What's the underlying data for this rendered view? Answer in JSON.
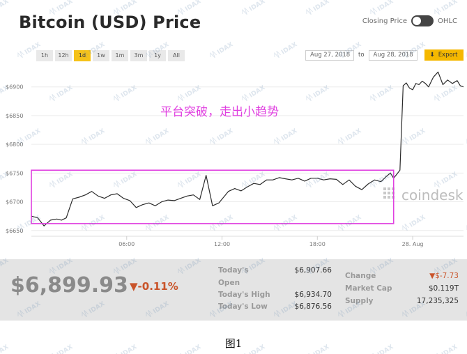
{
  "header": {
    "title": "Bitcoin (USD) Price",
    "closing_label": "Closing Price",
    "ohlc_label": "OHLC"
  },
  "ranges": [
    {
      "label": "1h",
      "active": false
    },
    {
      "label": "12h",
      "active": false
    },
    {
      "label": "1d",
      "active": true
    },
    {
      "label": "1w",
      "active": false
    },
    {
      "label": "1m",
      "active": false
    },
    {
      "label": "3m",
      "active": false
    },
    {
      "label": "1y",
      "active": false
    },
    {
      "label": "All",
      "active": false
    }
  ],
  "dates": {
    "from": "Aug 27, 2018",
    "to_label": "to",
    "to": "Aug 28, 2018",
    "export_label": "Export"
  },
  "chart_data": {
    "type": "line",
    "annotation": "平台突破，走出小趋势",
    "watermark": "coindesk",
    "y_ticks": [
      "$6900",
      "$6850",
      "$6800",
      "$6750",
      "$6700",
      "$6650"
    ],
    "x_ticks": [
      "06:00",
      "12:00",
      "18:00",
      "28. Aug"
    ],
    "ylim": [
      6640,
      6930
    ],
    "grid": true,
    "series": [
      {
        "x": [
          0,
          0.4,
          0.8,
          1.2,
          1.6,
          1.9,
          2.2,
          2.6,
          3,
          3.4,
          3.8,
          4.2,
          4.6,
          5,
          5.4,
          5.8,
          6.2,
          6.6,
          7,
          7.4,
          7.8,
          8.2,
          8.6,
          9,
          9.4,
          9.8,
          10.2,
          10.6,
          11,
          11.4,
          11.8,
          12.1,
          12.4,
          12.8,
          13.2,
          13.6,
          14,
          14.4,
          14.8,
          15.2,
          15.6,
          16,
          16.4,
          16.8,
          17.2,
          17.6,
          18,
          18.4,
          18.8,
          19.2,
          19.6,
          20,
          20.4,
          20.8,
          21.2,
          21.6,
          22,
          22.3,
          22.6,
          22.8,
          23.0,
          23.2,
          23.4,
          23.6,
          23.8,
          24.0,
          24.2,
          24.4,
          24.6,
          24.8,
          25.0,
          25.3,
          25.6,
          25.9,
          26.2,
          26.5,
          26.8,
          27.0,
          27.2
        ],
        "y": [
          6675,
          6672,
          6658,
          6668,
          6670,
          6668,
          6672,
          6705,
          6708,
          6712,
          6718,
          6710,
          6706,
          6712,
          6714,
          6706,
          6702,
          6690,
          6695,
          6698,
          6693,
          6700,
          6703,
          6702,
          6706,
          6710,
          6712,
          6704,
          6746,
          6693,
          6698,
          6708,
          6718,
          6723,
          6719,
          6726,
          6732,
          6730,
          6738,
          6738,
          6742,
          6740,
          6738,
          6741,
          6736,
          6741,
          6741,
          6738,
          6740,
          6739,
          6730,
          6738,
          6727,
          6721,
          6731,
          6738,
          6735,
          6743,
          6750,
          6741,
          6748,
          6755,
          6902,
          6907,
          6898,
          6895,
          6906,
          6904,
          6910,
          6906,
          6900,
          6917,
          6926,
          6904,
          6912,
          6906,
          6911,
          6902,
          6900
        ],
        "color": "#2b2b2b"
      }
    ],
    "highlight_box": {
      "x_range": [
        0,
        22.8
      ],
      "y_range": [
        6662,
        6755
      ],
      "color": "#e040e0"
    }
  },
  "stats": {
    "price": "$6,899.93",
    "change_pct": "▼-0.11%",
    "open_label_1": "Today's",
    "open_label_2": "Open",
    "open_value": "$6,907.66",
    "high_label": "Today's High",
    "high_value": "$6,934.70",
    "low_label": "Today's Low",
    "low_value": "$6,876.56",
    "change_label": "Change",
    "change_value": "▼$-7.73",
    "mcap_label": "Market Cap",
    "mcap_value": "$0.119T",
    "supply_label": "Supply",
    "supply_value": "17,235,325"
  },
  "caption": "图1",
  "watermark_text": "IDAX"
}
